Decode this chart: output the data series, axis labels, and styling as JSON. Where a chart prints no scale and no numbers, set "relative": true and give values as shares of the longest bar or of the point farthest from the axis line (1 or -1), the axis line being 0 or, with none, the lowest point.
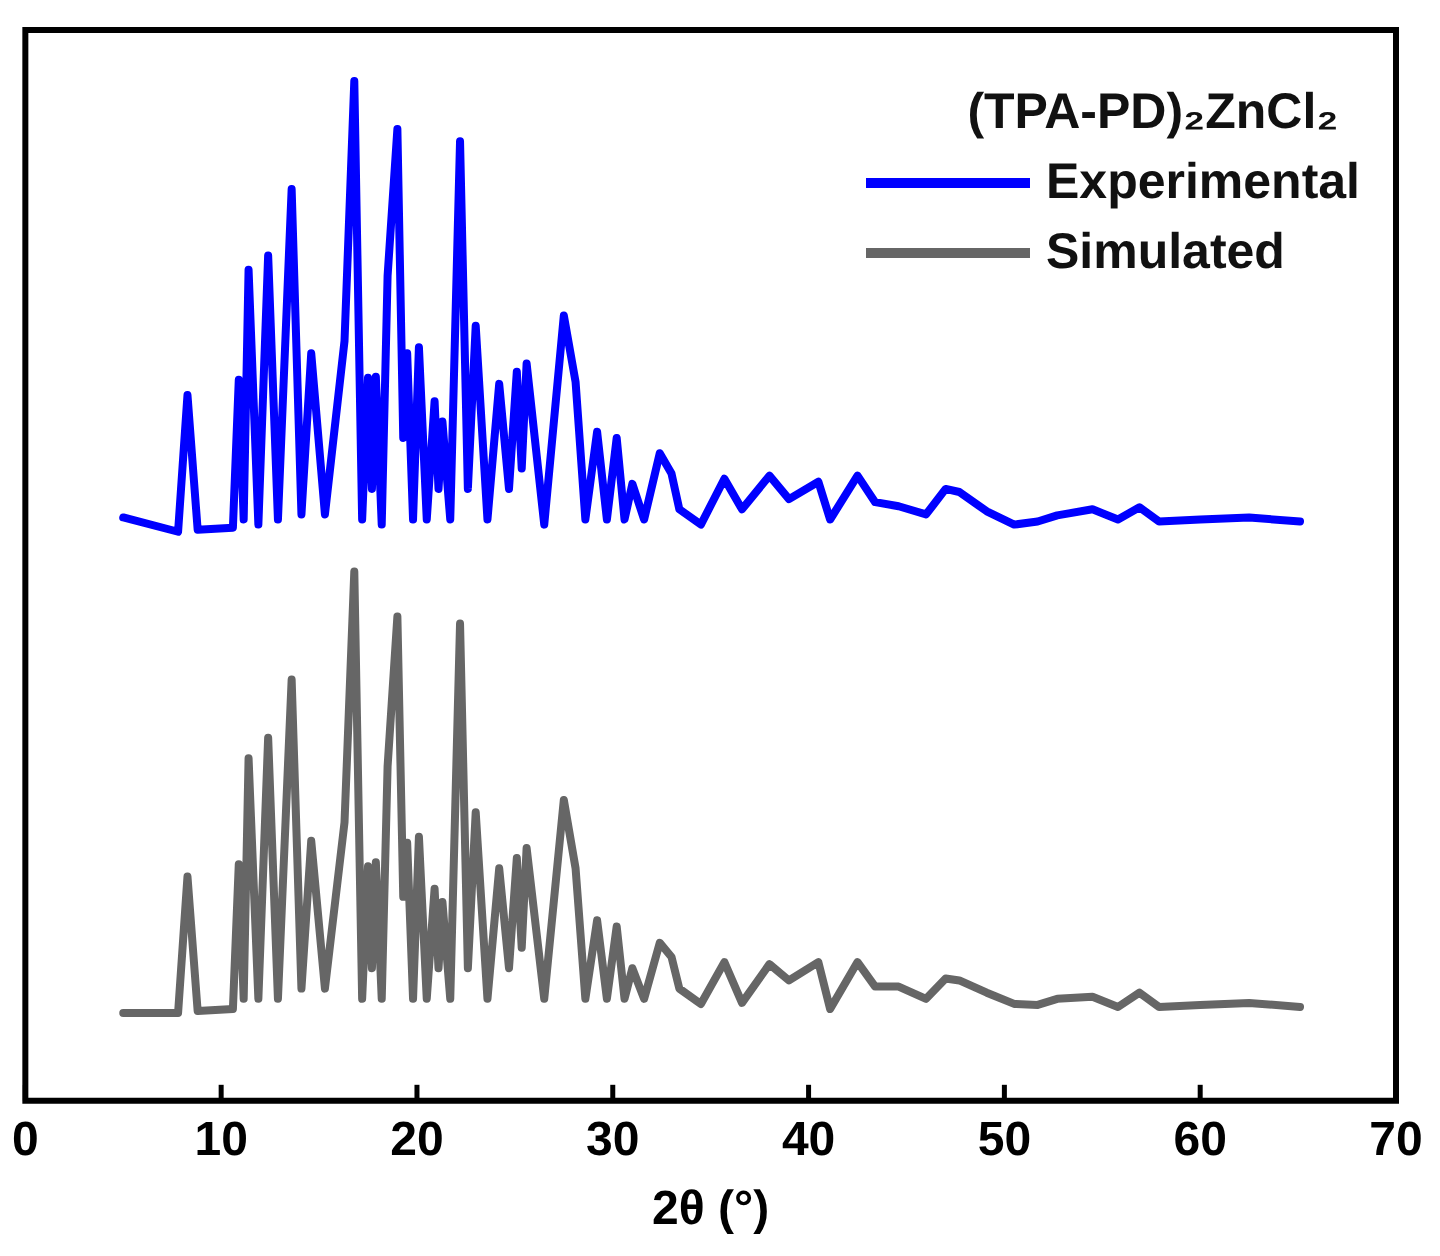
{
  "chart_data": {
    "type": "line",
    "relative": true,
    "xlabel": "2θ (°)",
    "legend_title": "(TPA-PD)₂ZnCl₂",
    "legend": "top right",
    "marker": "none",
    "line_style": "solid",
    "grid": false,
    "xlim": [
      0,
      70
    ],
    "xticks": [
      0,
      10,
      20,
      30,
      40,
      50,
      60,
      70
    ],
    "x": [
      5.0,
      7.8,
      8.28,
      8.8,
      10.6,
      10.9,
      11.15,
      11.4,
      11.9,
      12.4,
      12.9,
      13.6,
      14.1,
      14.6,
      15.3,
      16.3,
      16.8,
      17.2,
      17.5,
      17.7,
      17.9,
      18.2,
      18.5,
      19.0,
      19.3,
      19.5,
      19.8,
      20.1,
      20.5,
      20.9,
      21.1,
      21.3,
      21.7,
      22.2,
      22.6,
      23.0,
      23.6,
      24.2,
      24.7,
      25.1,
      25.35,
      25.6,
      26.5,
      27.5,
      28.1,
      28.6,
      29.2,
      29.7,
      30.2,
      30.6,
      31.0,
      31.6,
      32.4,
      33.0,
      33.4,
      34.5,
      35.7,
      36.6,
      38.0,
      39.0,
      40.5,
      41.1,
      42.5,
      43.4,
      44.6,
      46.0,
      47.0,
      47.7,
      49.1,
      50.5,
      51.7,
      52.7,
      54.5,
      55.8,
      56.9,
      57.9,
      60.0,
      62.5,
      65.1
    ],
    "series": [
      {
        "name": "Experimental",
        "color": "#0000ff",
        "values": [
          0.572,
          0.558,
          0.692,
          0.56,
          0.562,
          0.707,
          0.57,
          0.815,
          0.565,
          0.829,
          0.57,
          0.894,
          0.575,
          0.733,
          0.575,
          0.745,
          1,
          0.57,
          0.709,
          0.6,
          0.71,
          0.565,
          0.809,
          0.953,
          0.65,
          0.733,
          0.57,
          0.739,
          0.57,
          0.686,
          0.6,
          0.666,
          0.57,
          0.941,
          0.6,
          0.76,
          0.57,
          0.703,
          0.6,
          0.715,
          0.62,
          0.723,
          0.565,
          0.77,
          0.705,
          0.57,
          0.656,
          0.57,
          0.65,
          0.57,
          0.605,
          0.57,
          0.635,
          0.615,
          0.58,
          0.565,
          0.61,
          0.58,
          0.613,
          0.59,
          0.607,
          0.57,
          0.613,
          0.587,
          0.583,
          0.575,
          0.6,
          0.597,
          0.578,
          0.565,
          0.568,
          0.574,
          0.58,
          0.57,
          0.582,
          0.568,
          0.57,
          0.572,
          0.568
        ]
      },
      {
        "name": "Simulated",
        "color": "#666666",
        "values": [
          0.086,
          0.086,
          0.22,
          0.088,
          0.09,
          0.232,
          0.1,
          0.336,
          0.1,
          0.356,
          0.1,
          0.413,
          0.11,
          0.255,
          0.11,
          0.273,
          0.519,
          0.1,
          0.23,
          0.13,
          0.234,
          0.1,
          0.328,
          0.475,
          0.2,
          0.253,
          0.1,
          0.259,
          0.1,
          0.208,
          0.13,
          0.195,
          0.1,
          0.468,
          0.13,
          0.283,
          0.1,
          0.228,
          0.13,
          0.238,
          0.15,
          0.248,
          0.1,
          0.295,
          0.228,
          0.1,
          0.177,
          0.1,
          0.171,
          0.1,
          0.13,
          0.1,
          0.155,
          0.141,
          0.11,
          0.095,
          0.136,
          0.096,
          0.134,
          0.118,
          0.136,
          0.09,
          0.136,
          0.112,
          0.112,
          0.1,
          0.12,
          0.118,
          0.106,
          0.095,
          0.094,
          0.1,
          0.102,
          0.092,
          0.106,
          0.092,
          0.094,
          0.096,
          0.092
        ]
      }
    ]
  }
}
